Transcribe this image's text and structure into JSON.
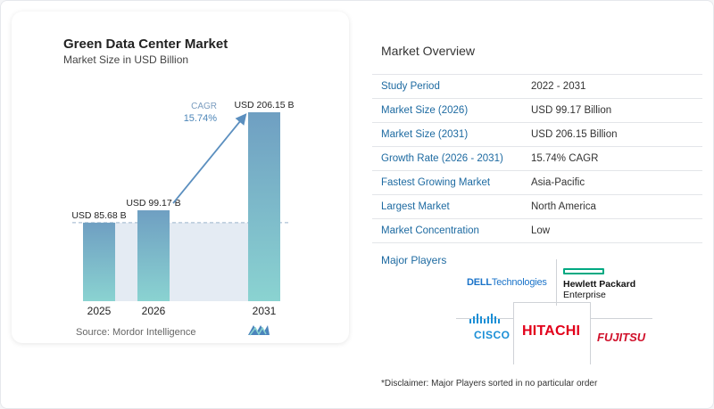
{
  "chart_data": {
    "type": "bar",
    "title": "Green Data Center Market",
    "subtitle": "Market Size in USD Billion",
    "categories": [
      "2025",
      "2026",
      "2031"
    ],
    "values": [
      85.68,
      99.17,
      206.15
    ],
    "value_labels": [
      "USD 85.68 B",
      "USD 99.17 B",
      "USD 206.15 B"
    ],
    "cagr_label": "CAGR",
    "cagr_value": "15.74%",
    "ylim": [
      0,
      220
    ],
    "colors": {
      "bar_top": "#6f9fc2",
      "bar_bottom": "#8ad3d1",
      "band": "#dde6f0",
      "arrow": "#5b8fbf"
    },
    "source": "Source: Mordor Intelligence"
  },
  "overview": {
    "title": "Market Overview",
    "rows": [
      {
        "key": "Study Period",
        "value": "2022 - 2031"
      },
      {
        "key": "Market Size (2026)",
        "value": "USD 99.17 Billion"
      },
      {
        "key": "Market Size (2031)",
        "value": "USD 206.15 Billion"
      },
      {
        "key": "Growth Rate (2026 - 2031)",
        "value": "15.74% CAGR"
      },
      {
        "key": "Fastest Growing Market",
        "value": "Asia-Pacific"
      },
      {
        "key": "Largest Market",
        "value": "North America"
      },
      {
        "key": "Market Concentration",
        "value": "Low"
      }
    ]
  },
  "players": {
    "title": "Major Players",
    "dell": {
      "brand": "DELL",
      "suffix": "Technologies"
    },
    "hpe": {
      "line1": "Hewlett Packard",
      "line2": "Enterprise"
    },
    "cisco": "CISCO",
    "hitachi": "HITACHI",
    "fujitsu": "FUJITSU"
  },
  "disclaimer": "*Disclaimer: Major Players sorted in no particular order"
}
